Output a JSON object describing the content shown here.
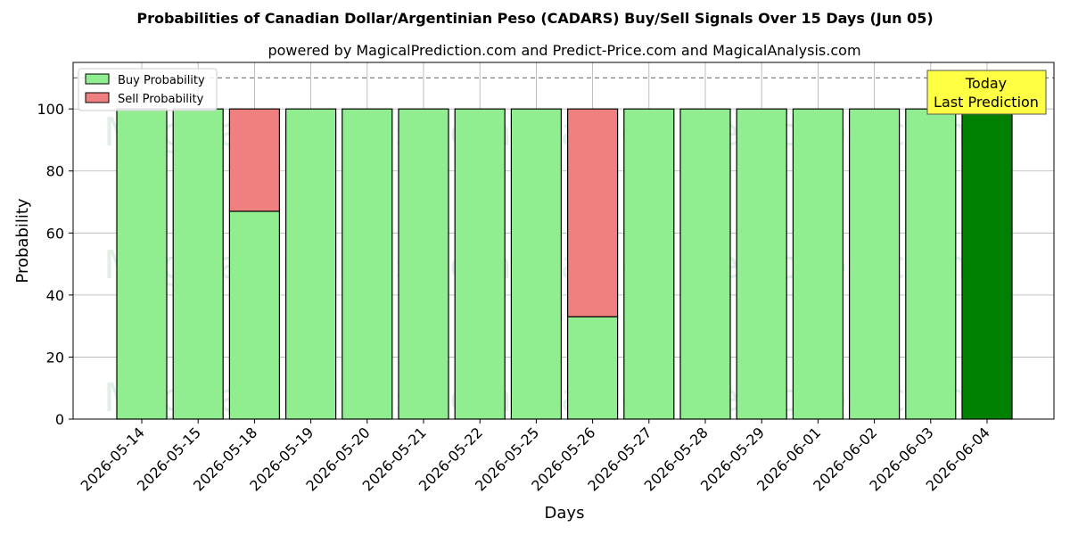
{
  "chart_data": {
    "type": "bar",
    "stacked": true,
    "title": "Probabilities of Canadian Dollar/Argentinian Peso (CADARS) Buy/Sell Signals Over 15 Days (Jun 05)",
    "subtitle": "powered by MagicalPrediction.com and Predict-Price.com and MagicalAnalysis.com",
    "xlabel": "Days",
    "ylabel": "Probability",
    "ylim": [
      0,
      115
    ],
    "yticks": [
      0,
      20,
      40,
      60,
      80,
      100
    ],
    "grid": true,
    "categories": [
      "2026-05-14",
      "2026-05-15",
      "2026-05-18",
      "2026-05-19",
      "2026-05-20",
      "2026-05-21",
      "2026-05-22",
      "2026-05-25",
      "2026-05-26",
      "2026-05-27",
      "2026-05-28",
      "2026-05-29",
      "2026-06-01",
      "2026-06-02",
      "2026-06-03",
      "2026-06-04"
    ],
    "series": [
      {
        "name": "Buy Probability",
        "color": "#90ee90",
        "values": [
          100,
          100,
          67,
          100,
          100,
          100,
          100,
          100,
          33,
          100,
          100,
          100,
          100,
          100,
          100,
          100
        ]
      },
      {
        "name": "Sell Probability",
        "color": "#f08080",
        "values": [
          0,
          0,
          33,
          0,
          0,
          0,
          0,
          0,
          67,
          0,
          0,
          0,
          0,
          0,
          0,
          0
        ]
      }
    ],
    "highlight": {
      "index": 15,
      "color": "#008000"
    },
    "reference_line": {
      "y": 110,
      "style": "dashed",
      "color": "#808080"
    },
    "annotation": {
      "lines": [
        "Today",
        "Last Prediction"
      ],
      "background": "#ffff44"
    },
    "legend_position": "top-left",
    "watermarks": [
      "MagicalAnalysis.com",
      "MagicalPrediction.com"
    ]
  }
}
